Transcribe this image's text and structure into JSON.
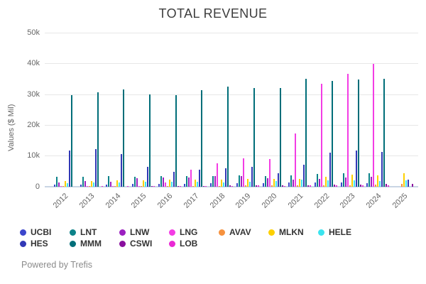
{
  "title": "TOTAL REVENUE",
  "footer": {
    "powered_by": "Powered by Trefis"
  },
  "colors": {
    "grid": "#e7e7e7",
    "baseline": "#c9d5e4",
    "axis_text": "#666666",
    "title_text": "#3d3d3d",
    "legend_text": "#333333"
  },
  "chart_data": {
    "type": "bar",
    "title": "TOTAL REVENUE",
    "xlabel": "",
    "ylabel": "Values ($ Mil)",
    "ylim": [
      0,
      50000
    ],
    "grid": true,
    "legend_position": "bottom",
    "ytick_values": [
      0,
      10000,
      20000,
      30000,
      40000,
      50000
    ],
    "ytick_labels": [
      "0",
      "10k",
      "20k",
      "30k",
      "40k",
      "50k"
    ],
    "categories": [
      "2012",
      "2013",
      "2014",
      "2015",
      "2016",
      "2017",
      "2018",
      "2019",
      "2020",
      "2021",
      "2022",
      "2023",
      "2024",
      "2025"
    ],
    "series": [
      {
        "name": "UCBI",
        "color": "#3c46cc",
        "values": [
          700,
          750,
          800,
          850,
          950,
          1000,
          1050,
          1100,
          1200,
          1300,
          1450,
          1300,
          1250,
          0
        ]
      },
      {
        "name": "LNT",
        "color": "#0c8289",
        "values": [
          3300,
          3300,
          3350,
          3250,
          3350,
          3450,
          3550,
          3700,
          3400,
          3700,
          4200,
          4300,
          4300,
          0
        ]
      },
      {
        "name": "LNW",
        "color": "#9c20c0",
        "values": [
          1500,
          1900,
          1700,
          2700,
          2950,
          3100,
          3350,
          3400,
          2700,
          2200,
          2500,
          2900,
          3200,
          0
        ]
      },
      {
        "name": "LNG",
        "color": "#f33de4",
        "values": [
          270,
          270,
          270,
          270,
          1300,
          5600,
          7700,
          9200,
          9050,
          17400,
          33400,
          36700,
          39900,
          0
        ]
      },
      {
        "name": "AVAV",
        "color": "#f6923e",
        "values": [
          300,
          250,
          250,
          260,
          260,
          270,
          300,
          370,
          430,
          400,
          450,
          540,
          700,
          820
        ]
      },
      {
        "name": "MLKN",
        "color": "#fdd000",
        "values": [
          1800,
          1800,
          2000,
          2100,
          2300,
          2300,
          2400,
          2550,
          2500,
          2450,
          3300,
          4000,
          3600,
          4500
        ]
      },
      {
        "name": "HELE",
        "color": "#3be4ef",
        "values": [
          1200,
          1300,
          1450,
          1550,
          1550,
          1550,
          1500,
          1700,
          1900,
          2200,
          2100,
          2050,
          1900,
          2000
        ]
      },
      {
        "name": "HES",
        "color": "#3138b6",
        "values": [
          11800,
          12300,
          10700,
          6500,
          4800,
          5500,
          6100,
          6500,
          4400,
          7200,
          11200,
          11800,
          11300,
          2200
        ]
      },
      {
        "name": "MMM",
        "color": "#006e79",
        "values": [
          29800,
          30700,
          31700,
          30000,
          29900,
          31500,
          32600,
          32100,
          32200,
          35000,
          34400,
          34800,
          35100,
          0
        ]
      },
      {
        "name": "CSWI",
        "color": "#8a0f9e",
        "values": [
          0,
          0,
          0,
          250,
          300,
          330,
          350,
          400,
          420,
          500,
          700,
          800,
          850,
          880
        ]
      },
      {
        "name": "LOB",
        "color": "#e929d4",
        "values": [
          0,
          100,
          150,
          180,
          220,
          250,
          300,
          350,
          250,
          400,
          350,
          350,
          370,
          0
        ]
      }
    ],
    "legend_rows": [
      [
        "UCBI",
        "LNT",
        "LNW",
        "LNG",
        "AVAV",
        "MLKN",
        "HELE"
      ],
      [
        "HES",
        "MMM",
        "CSWI",
        "LOB"
      ]
    ]
  }
}
